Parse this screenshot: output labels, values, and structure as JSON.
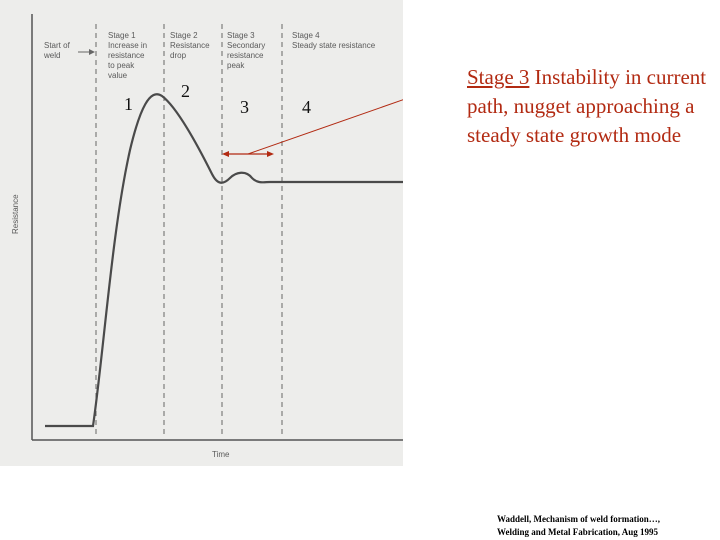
{
  "figure": {
    "start_label": [
      "Start of",
      "weld"
    ],
    "stages": [
      {
        "lines": [
          "Stage 1",
          "Increase in",
          "resistance",
          "to peak",
          "value"
        ],
        "number": "1"
      },
      {
        "lines": [
          "Stage 2",
          "Resistance",
          "drop"
        ],
        "number": "2"
      },
      {
        "lines": [
          "Stage 3",
          "Secondary",
          "resistance",
          "peak"
        ],
        "number": "3"
      },
      {
        "lines": [
          "Stage 4",
          "Steady state resistance"
        ],
        "number": "4"
      }
    ],
    "ylabel": "Resistance",
    "xlabel": "Time",
    "colors": {
      "background": "#ededeb",
      "curve": "#4a4a4a",
      "annotation": "#b22a12"
    }
  },
  "caption": {
    "heading": "Stage 3",
    "body": "Instability in current path, nugget approaching a steady state growth mode"
  },
  "citation": {
    "line1": "Waddell, Mechanism of weld formation…,",
    "line2": "Welding and Metal Fabrication, Aug 1995"
  }
}
